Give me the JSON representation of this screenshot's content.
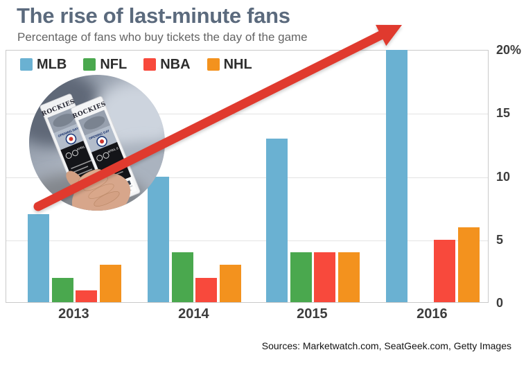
{
  "chart_data": {
    "type": "bar",
    "title": "The rise of last-minute fans",
    "subtitle": "Percentage of fans who buy tickets the day of the game",
    "categories": [
      "2013",
      "2014",
      "2015",
      "2016"
    ],
    "series": [
      {
        "name": "MLB",
        "color": "#6ab1d2",
        "values": [
          7,
          10,
          13,
          20
        ]
      },
      {
        "name": "NFL",
        "color": "#4aa84e",
        "values": [
          2,
          4,
          4,
          null
        ]
      },
      {
        "name": "NBA",
        "color": "#f8493c",
        "values": [
          1,
          2,
          4,
          5
        ]
      },
      {
        "name": "NHL",
        "color": "#f3921e",
        "values": [
          3,
          3,
          4,
          6
        ]
      }
    ],
    "ylim": [
      0,
      20
    ],
    "yticks": [
      {
        "value": 20,
        "label": "20%"
      },
      {
        "value": 15,
        "label": "15"
      },
      {
        "value": 10,
        "label": "10"
      },
      {
        "value": 5,
        "label": "5"
      },
      {
        "value": 0,
        "label": "0"
      }
    ],
    "legend_position": "top-left",
    "grid": "horizontal"
  },
  "photo": {
    "ticket_title": "ROCKIES",
    "ticket_subtitle": "OPENING DAY",
    "ticket_date": "APRIL 8"
  },
  "annotation": {
    "type": "upward-trend-arrow",
    "color": "#e03a2e"
  },
  "footer": {
    "sources": "Sources: Marketwatch.com, SeatGeek.com, Getty Images"
  }
}
